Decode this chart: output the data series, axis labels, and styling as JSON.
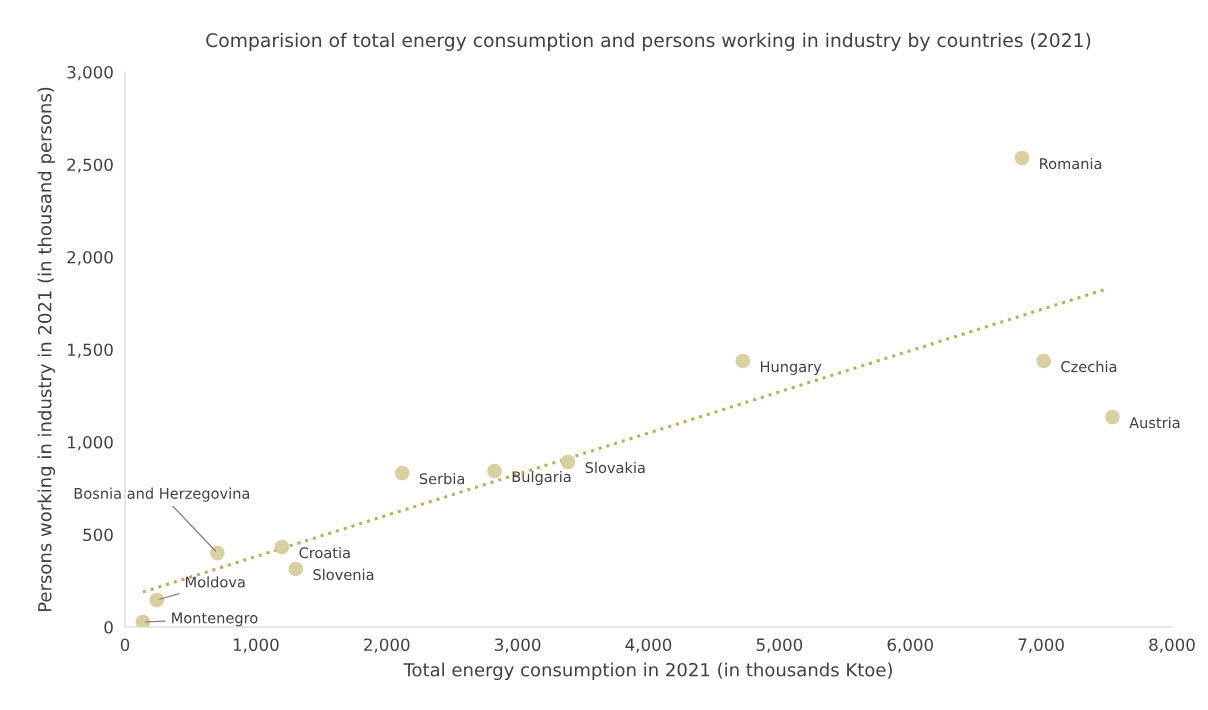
{
  "chart_data": {
    "type": "scatter",
    "title": "Comparision of total energy consumption and persons working in industry by countries (2021)",
    "xlabel": "Total energy consumption in 2021 (in thousands Ktoe)",
    "ylabel": "Persons working in industry in 2021 (in thousand persons)",
    "series": [
      {
        "color": "#d9d09f",
        "marker": "circle",
        "x": [
          137,
          243,
          706,
          1199,
          1305,
          2118,
          2824,
          3385,
          4721,
          6854,
          7020,
          7545
        ],
        "values": [
          27,
          146,
          400,
          432,
          314,
          832,
          843,
          892,
          1438,
          2535,
          1438,
          1135
        ]
      },
      {
        "type": "line",
        "color": "#c2ab55",
        "line_style": "dotted",
        "marker": "none",
        "x": [
          137,
          7499
        ],
        "values": [
          189,
          1827
        ]
      }
    ],
    "annotations": [
      {
        "text": "Montenegro",
        "x": 137,
        "y": 27
      },
      {
        "text": "Moldova",
        "x": 243,
        "y": 146
      },
      {
        "text": "Bosnia and Herzegovina",
        "x": 706,
        "y": 400
      },
      {
        "text": "Croatia",
        "x": 1199,
        "y": 432
      },
      {
        "text": "Slovenia",
        "x": 1305,
        "y": 314
      },
      {
        "text": "Serbia",
        "x": 2118,
        "y": 832
      },
      {
        "text": "Bulgaria",
        "x": 2824,
        "y": 843
      },
      {
        "text": "Slovakia",
        "x": 3385,
        "y": 892
      },
      {
        "text": "Hungary",
        "x": 4721,
        "y": 1438
      },
      {
        "text": "Romania",
        "x": 6854,
        "y": 2535
      },
      {
        "text": "Czechia",
        "x": 7020,
        "y": 1438
      },
      {
        "text": "Austria",
        "x": 7545,
        "y": 1135
      }
    ],
    "xlim": [
      0,
      8000
    ],
    "xticks": [
      {
        "value": 0,
        "label": "0"
      },
      {
        "value": 1000,
        "label": "1,000"
      },
      {
        "value": 2000,
        "label": "2,000"
      },
      {
        "value": 3000,
        "label": "3,000"
      },
      {
        "value": 4000,
        "label": "4,000"
      },
      {
        "value": 5000,
        "label": "5,000"
      },
      {
        "value": 6000,
        "label": "6,000"
      },
      {
        "value": 7000,
        "label": "7,000"
      },
      {
        "value": 8000,
        "label": "8,000"
      }
    ],
    "ylim": [
      0,
      3000
    ],
    "yticks": [
      {
        "value": 0,
        "label": "0"
      },
      {
        "value": 500,
        "label": "500"
      },
      {
        "value": 1000,
        "label": "1,000"
      },
      {
        "value": 1500,
        "label": "1,500"
      },
      {
        "value": 2000,
        "label": "2,000"
      },
      {
        "value": 2500,
        "label": "2,500"
      },
      {
        "value": 3000,
        "label": "3,000"
      }
    ],
    "grid": false,
    "legend": false
  }
}
